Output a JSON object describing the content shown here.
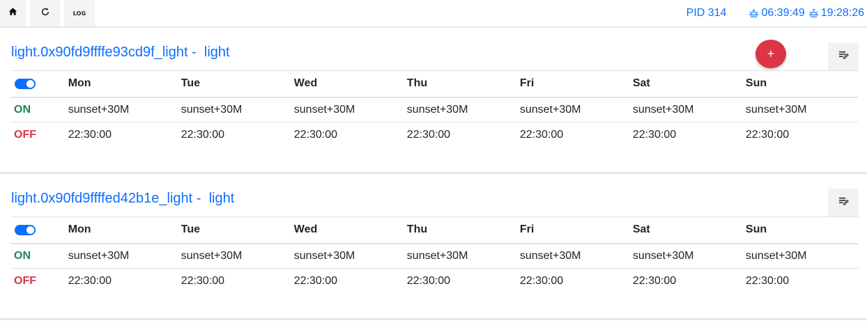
{
  "toolbar": {
    "home_icon": "home-icon",
    "refresh_icon": "refresh-icon",
    "log_label": "LOG"
  },
  "status": {
    "pid": "PID 314",
    "sunrise": "06:39:49",
    "sunset": "19:28:26",
    "sunrise_icon": "sunrise-icon",
    "sunset_icon": "sunset-icon"
  },
  "add_button_label": "+",
  "colors": {
    "accent": "#0d6efd",
    "on": "#198754",
    "off": "#dc3545",
    "add_button": "#dc3545"
  },
  "days": [
    "Mon",
    "Tue",
    "Wed",
    "Thu",
    "Fri",
    "Sat",
    "Sun"
  ],
  "devices": [
    {
      "title": "light.0x90fd9ffffe93cd9f_light -  light",
      "enabled": true,
      "on_label": "ON",
      "off_label": "OFF",
      "on_times": [
        "sunset+30M",
        "sunset+30M",
        "sunset+30M",
        "sunset+30M",
        "sunset+30M",
        "sunset+30M",
        "sunset+30M"
      ],
      "off_times": [
        "22:30:00",
        "22:30:00",
        "22:30:00",
        "22:30:00",
        "22:30:00",
        "22:30:00",
        "22:30:00"
      ]
    },
    {
      "title": "light.0x90fd9ffffed42b1e_light -  light",
      "enabled": true,
      "on_label": "ON",
      "off_label": "OFF",
      "on_times": [
        "sunset+30M",
        "sunset+30M",
        "sunset+30M",
        "sunset+30M",
        "sunset+30M",
        "sunset+30M",
        "sunset+30M"
      ],
      "off_times": [
        "22:30:00",
        "22:30:00",
        "22:30:00",
        "22:30:00",
        "22:30:00",
        "22:30:00",
        "22:30:00"
      ]
    }
  ]
}
